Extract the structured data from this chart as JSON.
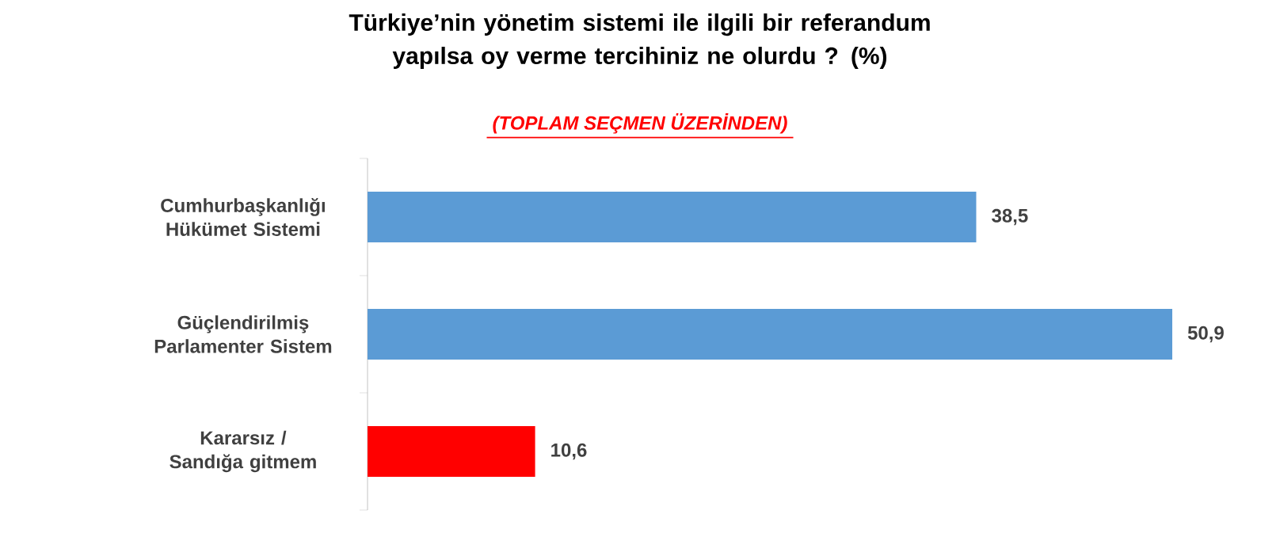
{
  "chart_data": {
    "type": "bar",
    "orientation": "horizontal",
    "title": "Türkiye’nin yönetim sistemi ile ilgili bir referandum yapılsa oy verme tercihiniz ne olurdu ? (%)",
    "subtitle": "(TOPLAM SEÇMEN ÜZERİNDEN)",
    "categories": [
      "Cumhurbaşkanlığı Hükümet Sistemi",
      "Güçlendirilmiş Parlamenter Sistem",
      "Kararsız / Sandığa gitmem"
    ],
    "values": [
      38.5,
      50.9,
      10.6
    ],
    "colors": [
      "#5b9bd5",
      "#5b9bd5",
      "#ff0000"
    ],
    "value_labels": [
      "38,5",
      "50,9",
      "10,6"
    ]
  }
}
